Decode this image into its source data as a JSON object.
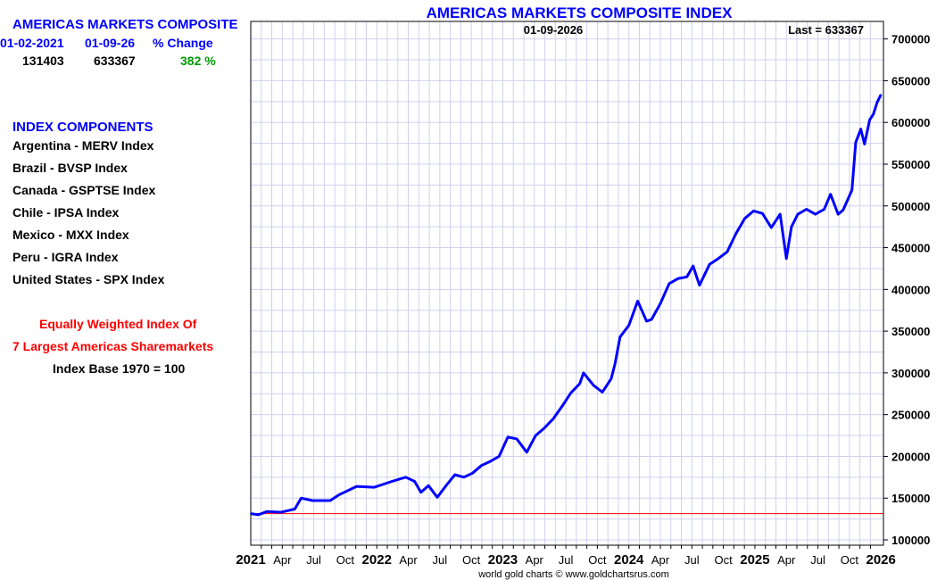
{
  "panel": {
    "title": "AMERICAS MARKETS COMPOSITE",
    "start_date": "01-02-2021",
    "end_date": "01-09-26",
    "change_label": "% Change",
    "start_value": "131403",
    "end_value": "633367",
    "change_value": "382 %",
    "components_title": "INDEX COMPONENTS",
    "components": [
      "Argentina - MERV Index",
      "Brazil - BVSP Index",
      "Canada - GSPTSE Index",
      "Chile - IPSA Index",
      "Mexico - MXX Index",
      "Peru - IGRA Index",
      "United States - SPX Index"
    ],
    "note1": "Equally Weighted Index Of",
    "note2": "7 Largest Americas Sharemarkets",
    "note3": "Index Base 1970 = 100"
  },
  "colors": {
    "title": "#0000ff",
    "line": "#0000ff",
    "baseline": "#ff0000",
    "grid": "#d0d0f0",
    "change": "#009900"
  },
  "chart_data": {
    "type": "line",
    "title": "AMERICAS MARKETS COMPOSITE INDEX",
    "date_label": "01-09-2026",
    "last_label": "Last = 633367",
    "footer": "world gold charts © www.goldchartsrus.com",
    "xlim": [
      2021.0,
      2026.02
    ],
    "ylim": [
      93600,
      721000
    ],
    "baseline": 131403,
    "y_ticks": [
      100000,
      150000,
      200000,
      250000,
      300000,
      350000,
      400000,
      450000,
      500000,
      550000,
      600000,
      650000,
      700000
    ],
    "x_ticks": [
      {
        "v": 2021.0,
        "label": "2021",
        "major": true
      },
      {
        "v": 2021.25,
        "label": "Apr"
      },
      {
        "v": 2021.5,
        "label": "Jul"
      },
      {
        "v": 2021.75,
        "label": "Oct"
      },
      {
        "v": 2022.0,
        "label": "2022",
        "major": true
      },
      {
        "v": 2022.25,
        "label": "Apr"
      },
      {
        "v": 2022.5,
        "label": "Jul"
      },
      {
        "v": 2022.75,
        "label": "Oct"
      },
      {
        "v": 2023.0,
        "label": "2023",
        "major": true
      },
      {
        "v": 2023.25,
        "label": "Apr"
      },
      {
        "v": 2023.5,
        "label": "Jul"
      },
      {
        "v": 2023.75,
        "label": "Oct"
      },
      {
        "v": 2024.0,
        "label": "2024",
        "major": true
      },
      {
        "v": 2024.25,
        "label": "Apr"
      },
      {
        "v": 2024.5,
        "label": "Jul"
      },
      {
        "v": 2024.75,
        "label": "Oct"
      },
      {
        "v": 2025.0,
        "label": "2025",
        "major": true
      },
      {
        "v": 2025.25,
        "label": "Apr"
      },
      {
        "v": 2025.5,
        "label": "Jul"
      },
      {
        "v": 2025.75,
        "label": "Oct"
      },
      {
        "v": 2026.0,
        "label": "2026",
        "major": true
      }
    ],
    "series": [
      {
        "name": "Americas Markets Composite Index",
        "x": [
          2021.0,
          2021.06,
          2021.13,
          2021.24,
          2021.35,
          2021.4,
          2021.49,
          2021.63,
          2021.7,
          2021.84,
          2021.98,
          2022.12,
          2022.23,
          2022.3,
          2022.35,
          2022.41,
          2022.48,
          2022.55,
          2022.62,
          2022.69,
          2022.76,
          2022.83,
          2022.9,
          2022.97,
          2023.04,
          2023.11,
          2023.19,
          2023.26,
          2023.33,
          2023.4,
          2023.47,
          2023.54,
          2023.61,
          2023.64,
          2023.72,
          2023.79,
          2023.86,
          2023.89,
          2023.93,
          2024.0,
          2024.07,
          2024.14,
          2024.18,
          2024.25,
          2024.32,
          2024.39,
          2024.46,
          2024.51,
          2024.56,
          2024.64,
          2024.71,
          2024.78,
          2024.85,
          2024.92,
          2024.99,
          2025.06,
          2025.13,
          2025.2,
          2025.25,
          2025.29,
          2025.34,
          2025.41,
          2025.48,
          2025.55,
          2025.6,
          2025.66,
          2025.7,
          2025.77,
          2025.8,
          2025.84,
          2025.87,
          2025.91,
          2025.94,
          2025.97,
          2026.0
        ],
        "y": [
          131403,
          130000,
          134000,
          133000,
          137000,
          150000,
          147000,
          147000,
          154000,
          164000,
          163000,
          170000,
          175000,
          170000,
          157000,
          165000,
          151000,
          165000,
          178000,
          175000,
          180000,
          189000,
          194000,
          200000,
          223000,
          221000,
          205000,
          225000,
          234000,
          245000,
          260000,
          276000,
          287000,
          300000,
          285000,
          277000,
          293000,
          311000,
          343000,
          357000,
          386000,
          362000,
          364000,
          383000,
          407000,
          413000,
          415000,
          428000,
          405000,
          430000,
          437000,
          445000,
          467000,
          485000,
          494000,
          491000,
          474000,
          490000,
          437000,
          475000,
          490000,
          496000,
          490000,
          496000,
          514000,
          490000,
          495000,
          519000,
          576000,
          592000,
          574000,
          603000,
          610000,
          624000,
          633367
        ]
      }
    ]
  }
}
